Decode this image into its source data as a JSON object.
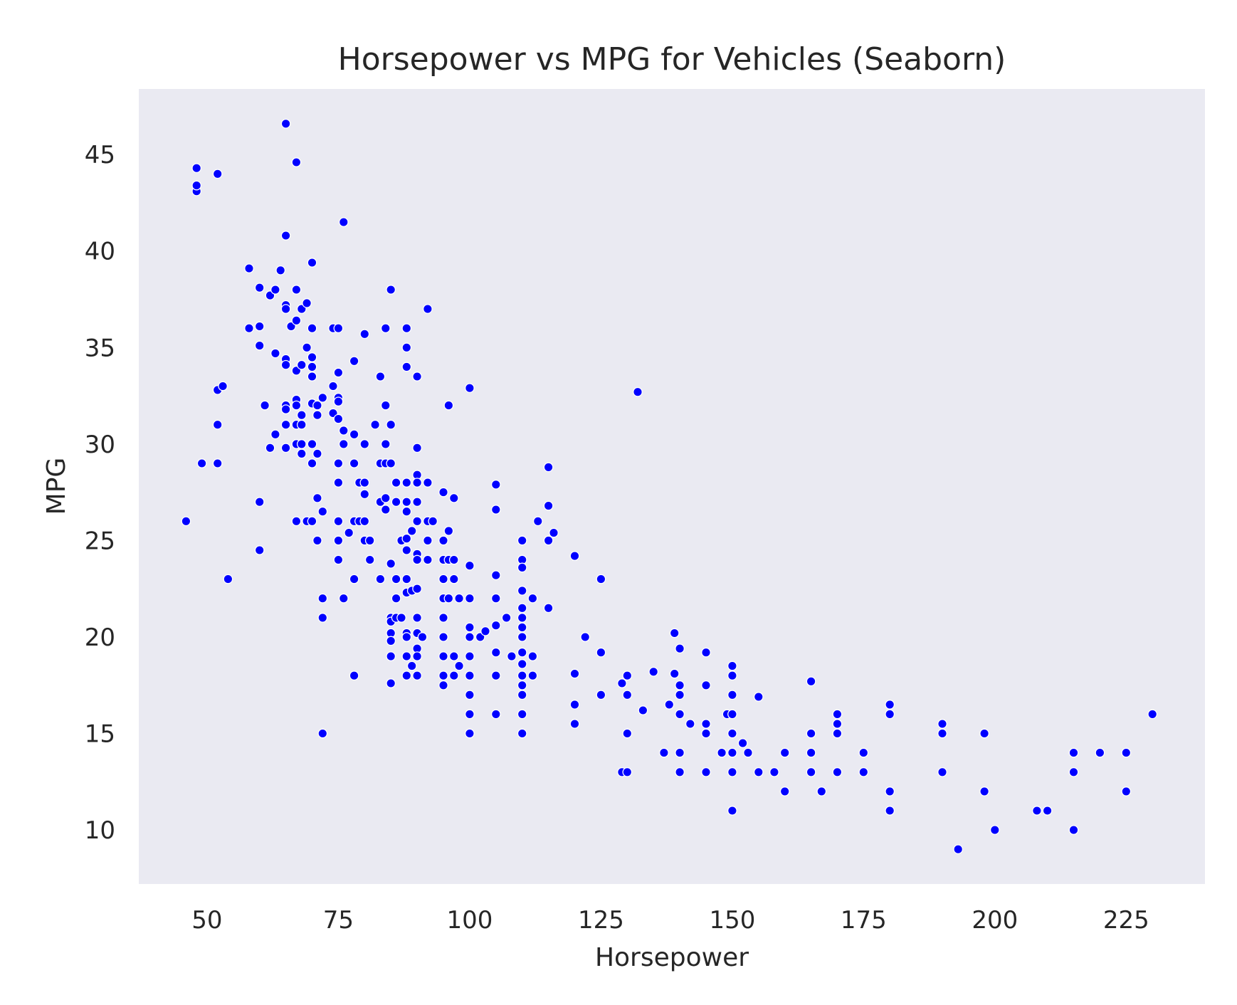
{
  "chart_data": {
    "type": "scatter",
    "title": "Horsepower vs MPG for Vehicles (Seaborn)",
    "xlabel": "Horsepower",
    "ylabel": "MPG",
    "xlim": [
      37,
      240
    ],
    "ylim": [
      7.2,
      48.4
    ],
    "xticks": [
      50,
      75,
      100,
      125,
      150,
      175,
      200,
      225
    ],
    "yticks": [
      10,
      15,
      20,
      25,
      30,
      35,
      40,
      45
    ],
    "grid": false,
    "legend": "none",
    "colors": {
      "background": "#eaeaf2",
      "point": "#0000ff",
      "point_edge": "#ffffff",
      "text": "#262626"
    },
    "series": [
      {
        "points": [
          [
            46,
            26
          ],
          [
            48,
            43.1
          ],
          [
            48,
            43.4
          ],
          [
            48,
            44.3
          ],
          [
            49,
            29
          ],
          [
            52,
            44
          ],
          [
            52,
            32.8
          ],
          [
            52,
            31
          ],
          [
            52,
            29
          ],
          [
            53,
            33
          ],
          [
            54,
            23
          ],
          [
            58,
            39.1
          ],
          [
            58,
            36
          ],
          [
            60,
            38.1
          ],
          [
            60,
            36.1
          ],
          [
            60,
            35.1
          ],
          [
            60,
            27
          ],
          [
            60,
            24.5
          ],
          [
            61,
            32
          ],
          [
            62,
            37.7
          ],
          [
            62,
            29.8
          ],
          [
            63,
            38
          ],
          [
            63,
            34.7
          ],
          [
            63,
            30.5
          ],
          [
            64,
            39
          ],
          [
            65,
            46.6
          ],
          [
            65,
            40.8
          ],
          [
            65,
            37.2
          ],
          [
            65,
            37
          ],
          [
            65,
            34.4
          ],
          [
            65,
            34.1
          ],
          [
            65,
            32
          ],
          [
            65,
            31.8
          ],
          [
            65,
            31
          ],
          [
            65,
            29.8
          ],
          [
            66,
            36.1
          ],
          [
            67,
            44.6
          ],
          [
            67,
            38
          ],
          [
            67,
            36.4
          ],
          [
            67,
            33.8
          ],
          [
            67,
            32.3
          ],
          [
            67,
            32
          ],
          [
            67,
            31
          ],
          [
            67,
            30
          ],
          [
            67,
            26
          ],
          [
            68,
            37
          ],
          [
            68,
            34.1
          ],
          [
            68,
            31.5
          ],
          [
            68,
            31
          ],
          [
            68,
            29.5
          ],
          [
            68,
            30
          ],
          [
            69,
            37.3
          ],
          [
            69,
            35
          ],
          [
            69,
            26
          ],
          [
            70,
            39.4
          ],
          [
            70,
            36
          ],
          [
            70,
            34.5
          ],
          [
            70,
            34
          ],
          [
            70,
            33.5
          ],
          [
            70,
            32.1
          ],
          [
            70,
            30
          ],
          [
            70,
            29
          ],
          [
            70,
            26
          ],
          [
            71,
            32
          ],
          [
            71,
            31.5
          ],
          [
            71,
            29.5
          ],
          [
            71,
            27.2
          ],
          [
            71,
            25
          ],
          [
            72,
            32.4
          ],
          [
            72,
            26.5
          ],
          [
            72,
            22
          ],
          [
            72,
            21
          ],
          [
            72,
            15
          ],
          [
            74,
            33
          ],
          [
            74,
            31.6
          ],
          [
            74,
            36
          ],
          [
            75,
            36
          ],
          [
            75,
            33.7
          ],
          [
            75,
            32.4
          ],
          [
            75,
            32.2
          ],
          [
            75,
            31.3
          ],
          [
            75,
            29
          ],
          [
            75,
            28
          ],
          [
            75,
            26
          ],
          [
            75,
            25
          ],
          [
            75,
            24
          ],
          [
            76,
            41.5
          ],
          [
            76,
            30.7
          ],
          [
            76,
            30
          ],
          [
            76,
            22
          ],
          [
            77,
            25.4
          ],
          [
            78,
            34.3
          ],
          [
            78,
            30.5
          ],
          [
            78,
            29
          ],
          [
            78,
            26
          ],
          [
            78,
            23
          ],
          [
            78,
            18
          ],
          [
            79,
            28
          ],
          [
            79,
            26
          ],
          [
            80,
            35.7
          ],
          [
            80,
            30
          ],
          [
            80,
            28
          ],
          [
            80,
            27.4
          ],
          [
            80,
            26
          ],
          [
            80,
            25
          ],
          [
            81,
            25
          ],
          [
            81,
            24
          ],
          [
            82,
            31
          ],
          [
            83,
            33.5
          ],
          [
            83,
            29
          ],
          [
            83,
            27
          ],
          [
            83,
            23
          ],
          [
            84,
            36
          ],
          [
            84,
            32
          ],
          [
            84,
            30
          ],
          [
            84,
            29
          ],
          [
            84,
            27.2
          ],
          [
            84,
            26.6
          ],
          [
            85,
            38
          ],
          [
            85,
            31
          ],
          [
            85,
            29
          ],
          [
            85,
            23.8
          ],
          [
            85,
            21
          ],
          [
            85,
            20.8
          ],
          [
            85,
            20.2
          ],
          [
            85,
            19.8
          ],
          [
            85,
            19
          ],
          [
            85,
            17.6
          ],
          [
            86,
            28
          ],
          [
            86,
            27
          ],
          [
            86,
            23
          ],
          [
            86,
            22
          ],
          [
            86,
            21
          ],
          [
            87,
            25
          ],
          [
            87,
            21
          ],
          [
            88,
            36
          ],
          [
            88,
            35
          ],
          [
            88,
            34
          ],
          [
            88,
            28
          ],
          [
            88,
            27
          ],
          [
            88,
            26.5
          ],
          [
            88,
            25.1
          ],
          [
            88,
            24.5
          ],
          [
            88,
            23
          ],
          [
            88,
            22.3
          ],
          [
            88,
            20.2
          ],
          [
            88,
            20
          ],
          [
            88,
            19
          ],
          [
            88,
            18
          ],
          [
            89,
            25.5
          ],
          [
            89,
            22.4
          ],
          [
            89,
            18.5
          ],
          [
            90,
            33.5
          ],
          [
            90,
            29.8
          ],
          [
            90,
            28.4
          ],
          [
            90,
            28
          ],
          [
            90,
            27
          ],
          [
            90,
            26
          ],
          [
            90,
            24.3
          ],
          [
            90,
            24
          ],
          [
            90,
            22.5
          ],
          [
            90,
            21
          ],
          [
            90,
            20.2
          ],
          [
            90,
            19.4
          ],
          [
            90,
            19
          ],
          [
            90,
            18
          ],
          [
            91,
            20
          ],
          [
            92,
            37
          ],
          [
            92,
            28
          ],
          [
            92,
            26
          ],
          [
            92,
            25
          ],
          [
            92,
            24
          ],
          [
            93,
            26
          ],
          [
            95,
            27.5
          ],
          [
            95,
            25
          ],
          [
            95,
            24
          ],
          [
            95,
            23
          ],
          [
            95,
            22
          ],
          [
            95,
            21
          ],
          [
            95,
            20
          ],
          [
            95,
            19
          ],
          [
            95,
            18
          ],
          [
            95,
            17.5
          ],
          [
            96,
            32
          ],
          [
            96,
            25.5
          ],
          [
            96,
            24
          ],
          [
            96,
            22
          ],
          [
            97,
            27.2
          ],
          [
            97,
            24
          ],
          [
            97,
            23
          ],
          [
            97,
            19
          ],
          [
            97,
            18
          ],
          [
            98,
            22
          ],
          [
            98,
            18.5
          ],
          [
            100,
            32.9
          ],
          [
            100,
            23.7
          ],
          [
            100,
            22
          ],
          [
            100,
            20.5
          ],
          [
            100,
            20
          ],
          [
            100,
            19
          ],
          [
            100,
            18
          ],
          [
            100,
            17
          ],
          [
            100,
            16
          ],
          [
            100,
            15
          ],
          [
            102,
            20
          ],
          [
            103,
            20.3
          ],
          [
            105,
            27.9
          ],
          [
            105,
            26.6
          ],
          [
            105,
            23.2
          ],
          [
            105,
            22
          ],
          [
            105,
            20.6
          ],
          [
            105,
            19.2
          ],
          [
            105,
            18
          ],
          [
            105,
            16
          ],
          [
            107,
            21
          ],
          [
            108,
            19
          ],
          [
            110,
            25
          ],
          [
            110,
            24
          ],
          [
            110,
            23.6
          ],
          [
            110,
            22.4
          ],
          [
            110,
            21.5
          ],
          [
            110,
            21
          ],
          [
            110,
            20.5
          ],
          [
            110,
            20
          ],
          [
            110,
            19.2
          ],
          [
            110,
            18.6
          ],
          [
            110,
            18
          ],
          [
            110,
            17.5
          ],
          [
            110,
            17
          ],
          [
            110,
            16
          ],
          [
            110,
            15
          ],
          [
            112,
            22
          ],
          [
            112,
            19
          ],
          [
            112,
            18
          ],
          [
            113,
            26
          ],
          [
            115,
            28.8
          ],
          [
            115,
            26.8
          ],
          [
            115,
            25
          ],
          [
            115,
            21.5
          ],
          [
            116,
            25.4
          ],
          [
            120,
            24.2
          ],
          [
            120,
            18.1
          ],
          [
            120,
            16.5
          ],
          [
            120,
            15.5
          ],
          [
            122,
            20
          ],
          [
            125,
            23
          ],
          [
            125,
            19.2
          ],
          [
            125,
            17
          ],
          [
            129,
            17.6
          ],
          [
            129,
            13
          ],
          [
            130,
            18
          ],
          [
            130,
            17
          ],
          [
            130,
            15
          ],
          [
            130,
            13
          ],
          [
            132,
            32.7
          ],
          [
            133,
            16.2
          ],
          [
            135,
            18.2
          ],
          [
            137,
            14
          ],
          [
            138,
            16.5
          ],
          [
            139,
            20.2
          ],
          [
            139,
            18.1
          ],
          [
            140,
            19.4
          ],
          [
            140,
            17.5
          ],
          [
            140,
            17
          ],
          [
            140,
            16
          ],
          [
            140,
            14
          ],
          [
            140,
            13
          ],
          [
            142,
            15.5
          ],
          [
            145,
            19.2
          ],
          [
            145,
            17.5
          ],
          [
            145,
            15.5
          ],
          [
            145,
            15
          ],
          [
            145,
            13
          ],
          [
            148,
            14
          ],
          [
            149,
            16
          ],
          [
            150,
            18.5
          ],
          [
            150,
            18
          ],
          [
            150,
            17
          ],
          [
            150,
            16
          ],
          [
            150,
            15
          ],
          [
            150,
            14
          ],
          [
            150,
            13
          ],
          [
            150,
            11
          ],
          [
            152,
            14.5
          ],
          [
            153,
            14
          ],
          [
            155,
            16.9
          ],
          [
            155,
            13
          ],
          [
            158,
            13
          ],
          [
            160,
            14
          ],
          [
            160,
            12
          ],
          [
            165,
            17.7
          ],
          [
            165,
            15
          ],
          [
            165,
            14
          ],
          [
            165,
            13
          ],
          [
            167,
            12
          ],
          [
            170,
            16
          ],
          [
            170,
            15.5
          ],
          [
            170,
            15
          ],
          [
            170,
            13
          ],
          [
            175,
            14
          ],
          [
            175,
            13
          ],
          [
            180,
            16.5
          ],
          [
            180,
            16
          ],
          [
            180,
            12
          ],
          [
            180,
            11
          ],
          [
            190,
            15.5
          ],
          [
            190,
            15
          ],
          [
            190,
            13
          ],
          [
            193,
            9
          ],
          [
            198,
            15
          ],
          [
            198,
            12
          ],
          [
            200,
            10
          ],
          [
            208,
            11
          ],
          [
            210,
            11
          ],
          [
            215,
            14
          ],
          [
            215,
            13
          ],
          [
            215,
            10
          ],
          [
            220,
            14
          ],
          [
            225,
            14
          ],
          [
            225,
            12
          ],
          [
            230,
            16
          ]
        ]
      }
    ]
  }
}
